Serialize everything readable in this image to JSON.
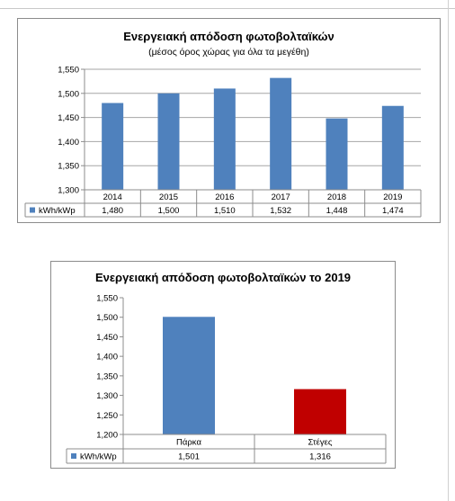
{
  "chart_data": [
    {
      "type": "bar",
      "title": "Ενεργειακή απόδοση φωτοβολταϊκών",
      "subtitle": "(μέσος όρος χώρας για όλα τα μεγέθη)",
      "categories": [
        "2014",
        "2015",
        "2016",
        "2017",
        "2018",
        "2019"
      ],
      "series": [
        {
          "name": "kWh/kWp",
          "values": [
            1.48,
            1.5,
            1.51,
            1.532,
            1.448,
            1.474
          ],
          "labels": [
            "1,480",
            "1,500",
            "1,510",
            "1,532",
            "1,448",
            "1,474"
          ],
          "color": "#4f81bd"
        }
      ],
      "bar_colors": [
        "#4f81bd",
        "#4f81bd",
        "#4f81bd",
        "#4f81bd",
        "#4f81bd",
        "#4f81bd"
      ],
      "ylim": [
        1.3,
        1.55
      ],
      "yticks": [
        "1,300",
        "1,350",
        "1,400",
        "1,450",
        "1,500",
        "1,550"
      ],
      "grid": true,
      "legend": "data-table"
    },
    {
      "type": "bar",
      "title": "Ενεργειακή απόδοση φωτοβολταϊκών το 2019",
      "categories": [
        "Πάρκα",
        "Στέγες"
      ],
      "series": [
        {
          "name": "kWh/kWp",
          "values": [
            1.501,
            1.316
          ],
          "labels": [
            "1,501",
            "1,316"
          ],
          "color": "#4f81bd"
        }
      ],
      "bar_colors": [
        "#4f81bd",
        "#c00000"
      ],
      "ylim": [
        1.2,
        1.55
      ],
      "yticks": [
        "1,200",
        "1,250",
        "1,300",
        "1,350",
        "1,400",
        "1,450",
        "1,500",
        "1,550"
      ],
      "grid": false,
      "legend": "data-table"
    }
  ]
}
